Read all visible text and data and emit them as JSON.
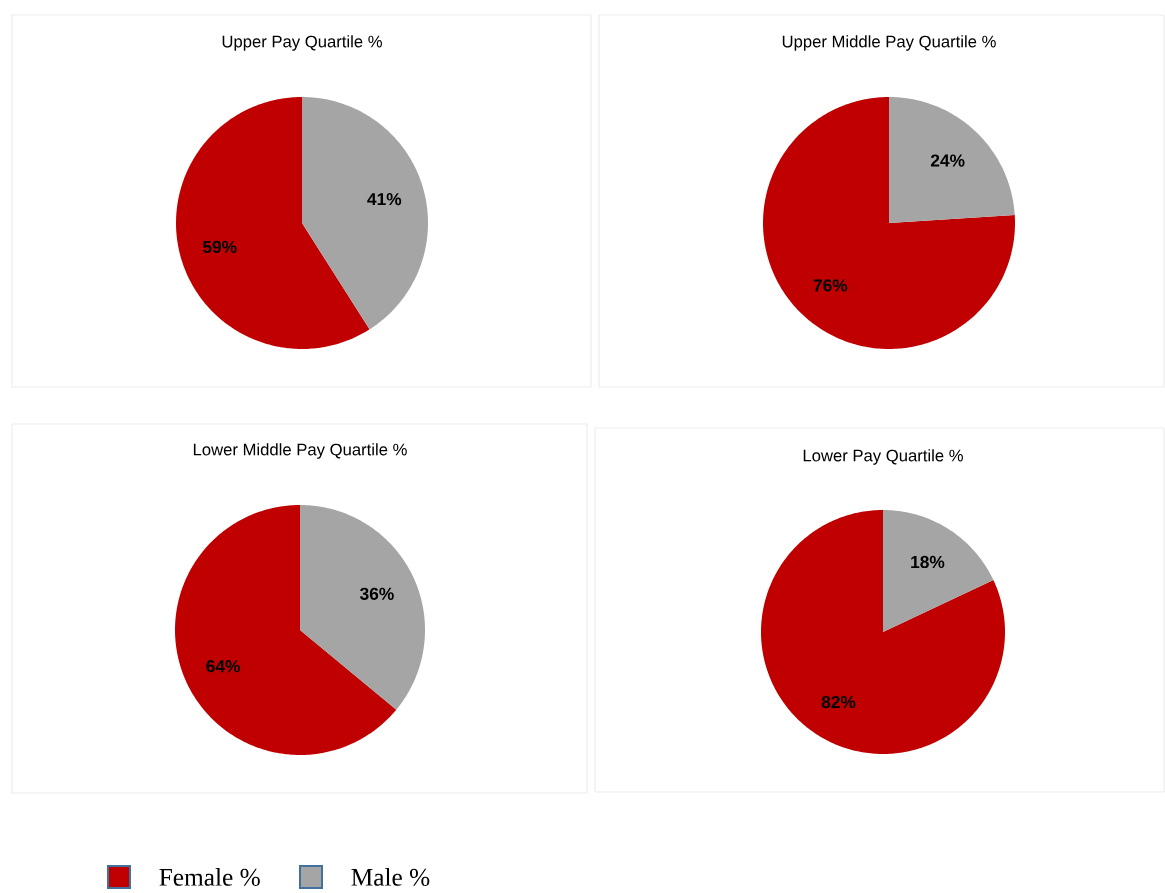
{
  "chart_data": [
    {
      "type": "pie",
      "title": "Upper Pay Quartile %",
      "categories": [
        "Female %",
        "Male %"
      ],
      "values": [
        59,
        41
      ],
      "colors": [
        "#c00000",
        "#a5a5a5"
      ],
      "value_labels": [
        "59%",
        "41%"
      ],
      "legend": "bottom"
    },
    {
      "type": "pie",
      "title": "Upper Middle Pay Quartile %",
      "categories": [
        null,
        null
      ],
      "values": [
        76,
        24
      ],
      "colors": [
        "#c00000",
        "#a5a5a5"
      ],
      "value_labels": [
        "76%",
        "24%"
      ]
    },
    {
      "type": "pie",
      "title": "Lower Middle Pay Quartile %",
      "categories": [
        null,
        null
      ],
      "values": [
        64,
        36
      ],
      "colors": [
        "#c00000",
        "#a5a5a5"
      ],
      "value_labels": [
        "64%",
        "36%"
      ]
    },
    {
      "type": "pie",
      "title": "Lower Pay Quartile %",
      "categories": [
        null,
        null
      ],
      "values": [
        82,
        18
      ],
      "colors": [
        "#c00000",
        "#a5a5a5"
      ],
      "value_labels": [
        "82%",
        "18%"
      ]
    }
  ]
}
